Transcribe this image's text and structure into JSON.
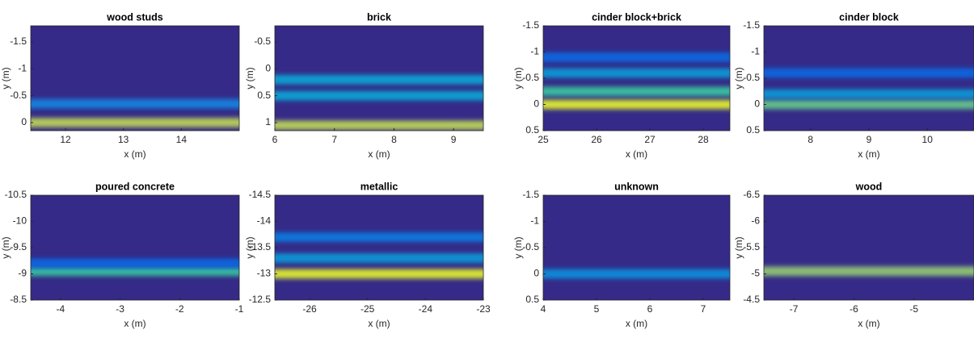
{
  "chart_data": [
    {
      "type": "heatmap",
      "title": "wood studs",
      "x_label": "x (m)",
      "y_label": "y (m)",
      "xlim": [
        11.4,
        15
      ],
      "xticks": [
        12,
        13,
        14
      ],
      "ylim": [
        0.15,
        -1.8
      ],
      "yticks": [
        -1.5,
        -1,
        -0.5,
        0
      ],
      "y": [
        0,
        -0.35
      ],
      "values": [
        0.9,
        0.45
      ]
    },
    {
      "type": "heatmap",
      "title": "brick",
      "x_label": "x (m)",
      "y_label": "y (m)",
      "xlim": [
        6,
        9.5
      ],
      "xticks": [
        6,
        7,
        8,
        9
      ],
      "ylim": [
        1.15,
        -0.8
      ],
      "yticks": [
        -0.5,
        0,
        0.5,
        1
      ],
      "y": [
        1.05,
        0.5,
        0.2
      ],
      "values": [
        0.9,
        0.6,
        0.6
      ]
    },
    {
      "type": "heatmap",
      "title": "cinder block+brick",
      "x_label": "x (m)",
      "y_label": "y (m)",
      "xlim": [
        25,
        28.5
      ],
      "xticks": [
        25,
        26,
        27,
        28
      ],
      "ylim": [
        0.5,
        -1.5
      ],
      "yticks": [
        -1.5,
        -1,
        -0.5,
        0,
        0.5
      ],
      "y": [
        0,
        -0.25,
        -0.6,
        -0.9
      ],
      "values": [
        0.95,
        0.75,
        0.55,
        0.3
      ]
    },
    {
      "type": "heatmap",
      "title": "cinder block",
      "x_label": "x (m)",
      "y_label": "y (m)",
      "xlim": [
        7.2,
        10.8
      ],
      "xticks": [
        8,
        9,
        10
      ],
      "ylim": [
        0.5,
        -1.5
      ],
      "yticks": [
        -1.5,
        -1,
        -0.5,
        0,
        0.5
      ],
      "y": [
        0,
        -0.2,
        -0.6
      ],
      "values": [
        0.8,
        0.55,
        0.3
      ]
    },
    {
      "type": "heatmap",
      "title": "poured concrete",
      "x_label": "x (m)",
      "y_label": "y (m)",
      "xlim": [
        -4.5,
        -1
      ],
      "xticks": [
        -4,
        -3,
        -2,
        -1
      ],
      "ylim": [
        -8.5,
        -10.5
      ],
      "yticks": [
        -10.5,
        -10,
        -9.5,
        -9,
        -8.5
      ],
      "y": [
        -9.05,
        -9.2
      ],
      "values": [
        0.75,
        0.3
      ]
    },
    {
      "type": "heatmap",
      "title": "metallic",
      "x_label": "x (m)",
      "y_label": "y (m)",
      "xlim": [
        -26.6,
        -23
      ],
      "xticks": [
        -26,
        -25,
        -24,
        -23
      ],
      "ylim": [
        -12.5,
        -14.5
      ],
      "yticks": [
        -14.5,
        -14,
        -13.5,
        -13,
        -12.5
      ],
      "y": [
        -13,
        -13.3,
        -13.7
      ],
      "values": [
        0.95,
        0.55,
        0.4
      ]
    },
    {
      "type": "heatmap",
      "title": "unknown",
      "x_label": "x (m)",
      "y_label": "y (m)",
      "xlim": [
        4,
        7.5
      ],
      "xticks": [
        4,
        5,
        6,
        7
      ],
      "ylim": [
        0.5,
        -1.5
      ],
      "yticks": [
        -1.5,
        -1,
        -0.5,
        0,
        0.5
      ],
      "y": [
        0
      ],
      "values": [
        0.5
      ]
    },
    {
      "type": "heatmap",
      "title": "wood",
      "x_label": "x (m)",
      "y_label": "y (m)",
      "xlim": [
        -7.5,
        -4
      ],
      "xticks": [
        -7,
        -6,
        -5
      ],
      "ylim": [
        -4.5,
        -6.5
      ],
      "yticks": [
        -6.5,
        -6,
        -5.5,
        -5,
        -4.5
      ],
      "y": [
        -5.05
      ],
      "values": [
        0.85
      ]
    }
  ]
}
